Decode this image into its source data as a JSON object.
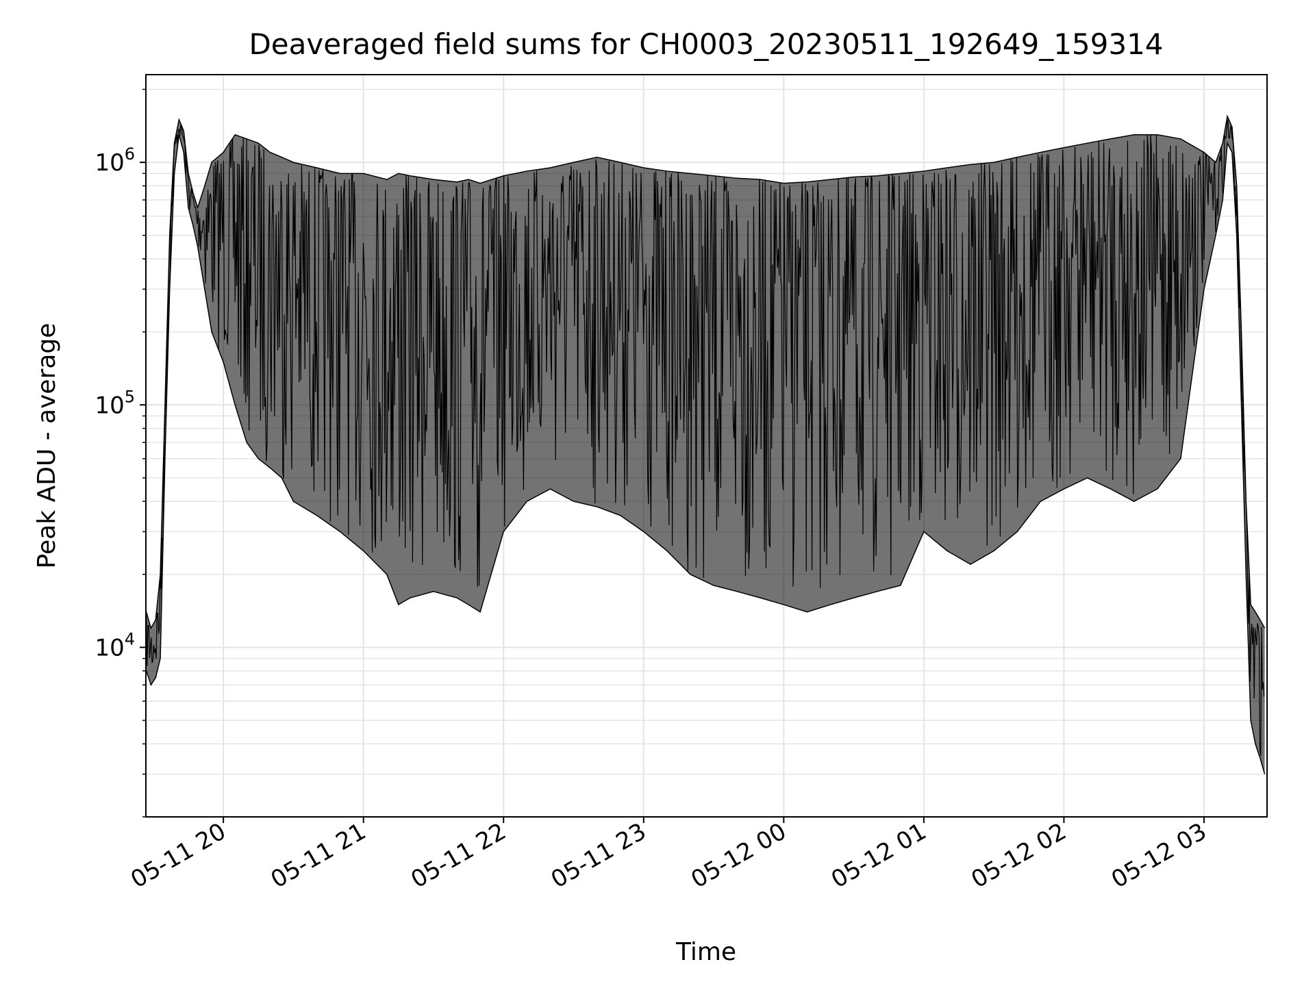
{
  "chart_data": {
    "type": "line",
    "title": "Deaveraged field sums for CH0003_20230511_192649_159314",
    "xlabel": "Time",
    "ylabel": "Peak ADU - average",
    "yscale": "log",
    "ylim": [
      2000,
      2300000
    ],
    "xlim": [
      "2023-05-11 19:26:49",
      "2023-05-12 03:27:00"
    ],
    "grid": true,
    "line_color": "#000000",
    "grid_color": "#e4e4e4",
    "x_tick_values": [
      "2023-05-11 20:00",
      "2023-05-11 21:00",
      "2023-05-11 22:00",
      "2023-05-11 23:00",
      "2023-05-12 00:00",
      "2023-05-12 01:00",
      "2023-05-12 02:00",
      "2023-05-12 03:00"
    ],
    "x_tick_labels": [
      "05-11 20",
      "05-11 21",
      "05-11 22",
      "05-11 23",
      "05-12 00",
      "05-12 01",
      "05-12 02",
      "05-12 03"
    ],
    "y_ticks": [
      {
        "value": 10000,
        "base": "10",
        "exp": "4"
      },
      {
        "value": 100000,
        "base": "10",
        "exp": "5"
      },
      {
        "value": 1000000,
        "base": "10",
        "exp": "6"
      }
    ],
    "series": [
      {
        "x": [
          "2023-05-11 19:27",
          "2023-05-11 19:29",
          "2023-05-11 19:31",
          "2023-05-11 19:33",
          "2023-05-11 19:35",
          "2023-05-11 19:37",
          "2023-05-11 19:39",
          "2023-05-11 19:41",
          "2023-05-11 19:43",
          "2023-05-11 19:45",
          "2023-05-11 19:47",
          "2023-05-11 19:49",
          "2023-05-11 19:52",
          "2023-05-11 19:55",
          "2023-05-11 20:00",
          "2023-05-11 20:05",
          "2023-05-11 20:10",
          "2023-05-11 20:15",
          "2023-05-11 20:20",
          "2023-05-11 20:25",
          "2023-05-11 20:30",
          "2023-05-11 20:40",
          "2023-05-11 20:50",
          "2023-05-11 21:00",
          "2023-05-11 21:10",
          "2023-05-11 21:15",
          "2023-05-11 21:20",
          "2023-05-11 21:30",
          "2023-05-11 21:40",
          "2023-05-11 21:45",
          "2023-05-11 21:50",
          "2023-05-11 22:00",
          "2023-05-11 22:10",
          "2023-05-11 22:20",
          "2023-05-11 22:30",
          "2023-05-11 22:40",
          "2023-05-11 22:50",
          "2023-05-11 23:00",
          "2023-05-11 23:10",
          "2023-05-11 23:20",
          "2023-05-11 23:30",
          "2023-05-11 23:40",
          "2023-05-11 23:50",
          "2023-05-12 00:00",
          "2023-05-12 00:10",
          "2023-05-12 00:20",
          "2023-05-12 00:30",
          "2023-05-12 00:40",
          "2023-05-12 00:50",
          "2023-05-12 01:00",
          "2023-05-12 01:10",
          "2023-05-12 01:20",
          "2023-05-12 01:30",
          "2023-05-12 01:40",
          "2023-05-12 01:50",
          "2023-05-12 02:00",
          "2023-05-12 02:10",
          "2023-05-12 02:20",
          "2023-05-12 02:30",
          "2023-05-12 02:40",
          "2023-05-12 02:50",
          "2023-05-12 03:00",
          "2023-05-12 03:05",
          "2023-05-12 03:08",
          "2023-05-12 03:10",
          "2023-05-12 03:12",
          "2023-05-12 03:14",
          "2023-05-12 03:16",
          "2023-05-12 03:18",
          "2023-05-12 03:20",
          "2023-05-12 03:22",
          "2023-05-12 03:24",
          "2023-05-12 03:26"
        ],
        "upper": [
          14000,
          12000,
          13000,
          20000,
          100000,
          500000,
          1200000,
          1500000,
          1350000,
          900000,
          750000,
          650000,
          800000,
          1000000,
          1100000,
          1300000,
          1250000,
          1200000,
          1100000,
          1050000,
          1000000,
          950000,
          900000,
          900000,
          850000,
          900000,
          880000,
          850000,
          830000,
          850000,
          820000,
          880000,
          920000,
          950000,
          1000000,
          1050000,
          1000000,
          950000,
          920000,
          900000,
          880000,
          860000,
          850000,
          820000,
          830000,
          850000,
          870000,
          880000,
          900000,
          920000,
          950000,
          980000,
          1000000,
          1050000,
          1100000,
          1150000,
          1200000,
          1250000,
          1300000,
          1300000,
          1250000,
          1100000,
          1000000,
          1200000,
          1550000,
          1400000,
          800000,
          200000,
          40000,
          15000,
          14000,
          13000,
          12000
        ],
        "lower": [
          8000,
          7000,
          7500,
          9000,
          60000,
          300000,
          900000,
          1300000,
          1100000,
          650000,
          550000,
          450000,
          300000,
          200000,
          150000,
          100000,
          70000,
          60000,
          55000,
          50000,
          40000,
          35000,
          30000,
          25000,
          20000,
          15000,
          16000,
          17000,
          16000,
          15000,
          14000,
          30000,
          40000,
          45000,
          40000,
          38000,
          35000,
          30000,
          25000,
          20000,
          18000,
          17000,
          16000,
          15000,
          14000,
          15000,
          16000,
          17000,
          18000,
          30000,
          25000,
          22000,
          25000,
          30000,
          40000,
          45000,
          50000,
          45000,
          40000,
          45000,
          60000,
          300000,
          500000,
          700000,
          1200000,
          1100000,
          500000,
          100000,
          20000,
          5000,
          4000,
          3500,
          3000
        ]
      }
    ]
  }
}
